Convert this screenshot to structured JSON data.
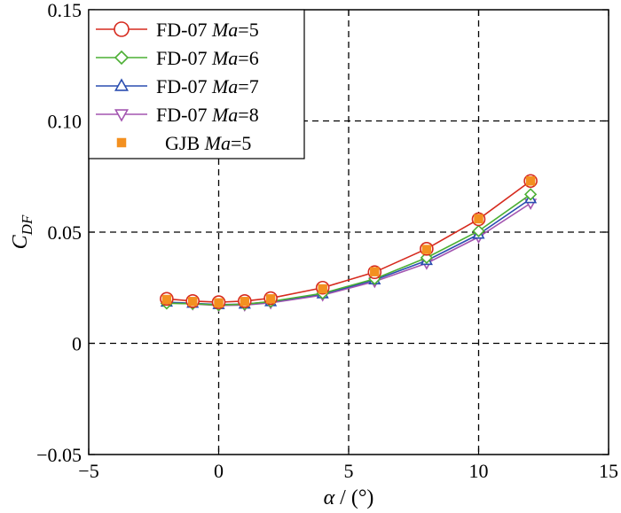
{
  "chart_data": {
    "type": "line",
    "title": "",
    "xlabel": {
      "symbol": "α",
      "unit": " / (°)"
    },
    "ylabel": {
      "main": "C",
      "sub": "DF"
    },
    "xlim": [
      -5,
      15
    ],
    "ylim": [
      -0.05,
      0.15
    ],
    "xticks": [
      -5,
      0,
      5,
      10,
      15
    ],
    "xtick_labels": [
      "−5",
      "0",
      "5",
      "10",
      "15"
    ],
    "yticks": [
      -0.05,
      0,
      0.05,
      0.1,
      0.15
    ],
    "ytick_labels": [
      "−0.05",
      "0",
      "0.05",
      "0.10",
      "0.15"
    ],
    "grid": {
      "x": [
        0,
        5,
        10
      ],
      "y": [
        0,
        0.05,
        0.1
      ],
      "style": "dashed"
    },
    "legend_position": "top-left",
    "x": [
      -2,
      -1,
      0,
      1,
      2,
      4,
      6,
      8,
      10,
      12
    ],
    "series": [
      {
        "label_main": "FD-07 ",
        "label_italic": "Ma",
        "label_tail": "=5",
        "color": "#d62a1e",
        "marker": "circle",
        "line": true,
        "values": [
          0.02,
          0.019,
          0.0185,
          0.019,
          0.0203,
          0.025,
          0.032,
          0.0425,
          0.0558,
          0.073
        ]
      },
      {
        "label_main": "FD-07 ",
        "label_italic": "Ma",
        "label_tail": "=6",
        "color": "#4caf34",
        "marker": "diamond",
        "line": true,
        "values": [
          0.018,
          0.0178,
          0.0172,
          0.0176,
          0.0188,
          0.0225,
          0.029,
          0.0385,
          0.0505,
          0.067
        ]
      },
      {
        "label_main": "FD-07 ",
        "label_italic": "Ma",
        "label_tail": "=7",
        "color": "#2a4db0",
        "marker": "triangle-up",
        "line": true,
        "values": [
          0.0185,
          0.018,
          0.0174,
          0.0176,
          0.0187,
          0.0222,
          0.0285,
          0.0372,
          0.049,
          0.065
        ]
      },
      {
        "label_main": "FD-07 ",
        "label_italic": "Ma",
        "label_tail": "=8",
        "color": "#a355b0",
        "marker": "triangle-down",
        "line": true,
        "values": [
          0.0182,
          0.0177,
          0.017,
          0.0172,
          0.0182,
          0.0217,
          0.0278,
          0.036,
          0.0478,
          0.063
        ]
      },
      {
        "label_main": "GJB ",
        "label_italic": "Ma",
        "label_tail": "=5",
        "color": "#f39020",
        "marker": "square",
        "line": false,
        "values": [
          0.0197,
          0.0188,
          0.0182,
          0.0188,
          0.02,
          0.0245,
          0.0322,
          0.0422,
          0.056,
          0.073
        ]
      }
    ]
  }
}
